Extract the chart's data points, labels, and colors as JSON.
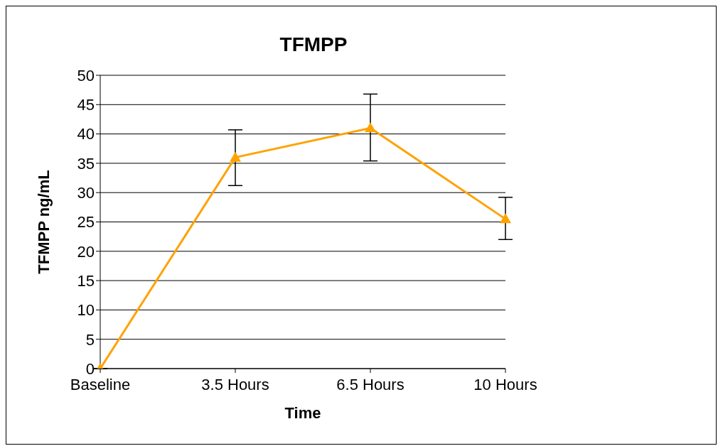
{
  "chart_data": {
    "type": "line",
    "title": "TFMPP",
    "xlabel": "Time",
    "ylabel": "TFMPP ng/mL",
    "categories": [
      "Baseline",
      "3.5 Hours",
      "6.5 Hours",
      "10 Hours"
    ],
    "series": [
      {
        "color": "#ffa200",
        "values": [
          0,
          36,
          41,
          25.5
        ],
        "errors": [
          null,
          [
            31.2,
            40.7
          ],
          [
            35.4,
            46.8
          ],
          [
            22,
            29.2
          ]
        ]
      }
    ],
    "ylim": [
      0,
      50
    ],
    "yticks": [
      0,
      5,
      10,
      15,
      20,
      25,
      30,
      35,
      40,
      45,
      50
    ],
    "grid": "y",
    "legend": false,
    "marker": "triangle",
    "line_style": "solid"
  }
}
